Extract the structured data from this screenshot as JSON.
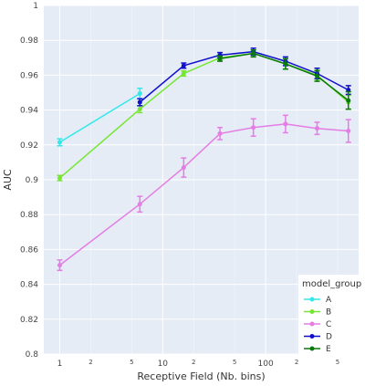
{
  "chart_data": {
    "type": "line",
    "xlabel": "Receptive Field (Nb. bins)",
    "ylabel": "AUC",
    "x_scale": "log",
    "xlim": [
      0.7,
      800
    ],
    "ylim": [
      0.8,
      1.0
    ],
    "y_ticks": [
      "0.8",
      "0.82",
      "0.84",
      "0.86",
      "0.88",
      "0.9",
      "0.92",
      "0.94",
      "0.96",
      "0.98",
      "1"
    ],
    "x_major_ticks": [
      {
        "value": 1,
        "label": "1"
      },
      {
        "value": 10,
        "label": "10"
      },
      {
        "value": 100,
        "label": "100"
      }
    ],
    "x_minor_ticks": [
      {
        "value": 2,
        "label": "2"
      },
      {
        "value": 5,
        "label": "5"
      },
      {
        "value": 20,
        "label": "2"
      },
      {
        "value": 50,
        "label": "5"
      },
      {
        "value": 200,
        "label": "2"
      },
      {
        "value": 500,
        "label": "5"
      }
    ],
    "grid": true,
    "legend": {
      "title": "model_group",
      "position": "bottom-right"
    },
    "x": [
      1,
      6,
      16,
      36,
      76,
      156,
      316,
      636
    ],
    "series": [
      {
        "name": "A",
        "color": "#33e8e8",
        "values": [
          0.9215,
          0.9495,
          null,
          null,
          null,
          null,
          null,
          null
        ],
        "errors": [
          0.002,
          0.003,
          null,
          null,
          null,
          null,
          null,
          null
        ]
      },
      {
        "name": "B",
        "color": "#77e633",
        "values": [
          0.901,
          0.9405,
          0.961,
          0.97,
          0.9725,
          0.9665,
          0.96,
          0.9445
        ],
        "errors": [
          0.0015,
          0.002,
          0.0015,
          0.0015,
          0.002,
          0.003,
          0.003,
          0.004
        ]
      },
      {
        "name": "C",
        "color": "#e47de4",
        "values": [
          0.851,
          0.886,
          0.907,
          0.9265,
          0.93,
          0.932,
          0.9295,
          0.928
        ],
        "errors": [
          0.003,
          0.0045,
          0.0055,
          0.0035,
          0.005,
          0.005,
          0.0035,
          0.0065
        ]
      },
      {
        "name": "D",
        "color": "#1010cc",
        "values": [
          null,
          0.9445,
          0.9655,
          0.9715,
          0.9735,
          0.968,
          0.961,
          0.9515
        ],
        "errors": [
          null,
          0.002,
          0.0015,
          0.0015,
          0.002,
          0.0025,
          0.003,
          0.0025
        ]
      },
      {
        "name": "E",
        "color": "#0a7a0a",
        "values": [
          null,
          null,
          null,
          0.9695,
          0.9725,
          0.9665,
          0.9595,
          0.9455
        ],
        "errors": [
          null,
          null,
          null,
          0.0015,
          0.002,
          0.003,
          0.003,
          0.005
        ]
      }
    ]
  }
}
